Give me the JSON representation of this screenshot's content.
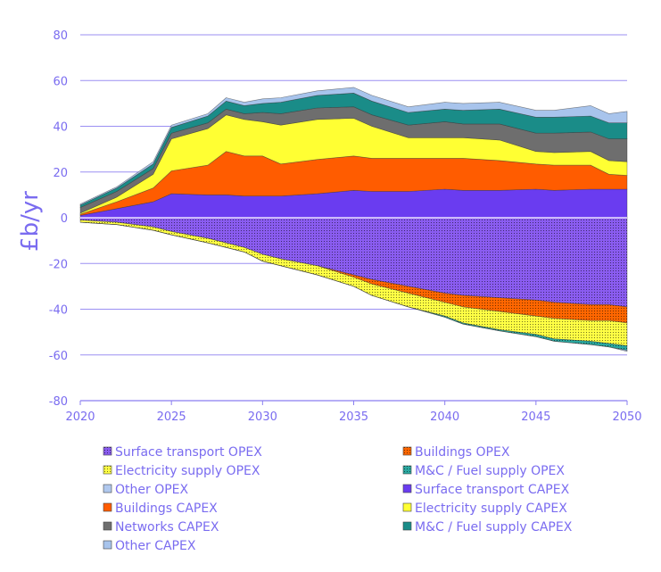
{
  "chart_data": {
    "type": "area",
    "ylabel": "£b/yr",
    "xlabel": "",
    "ylim": [
      -80,
      80
    ],
    "yticks": [
      -80,
      -60,
      -40,
      -20,
      0,
      20,
      40,
      60,
      80
    ],
    "xlim": [
      2020,
      2050
    ],
    "xticks": [
      2020,
      2025,
      2030,
      2035,
      2040,
      2045,
      2050
    ],
    "grid": "horizontal",
    "legend_position": "bottom",
    "x": [
      2020,
      2022,
      2024,
      2025,
      2027,
      2028,
      2029,
      2030,
      2031,
      2033,
      2035,
      2036,
      2038,
      2040,
      2041,
      2043,
      2045,
      2046,
      2048,
      2049,
      2050
    ],
    "series": [
      {
        "name": "Surface transport OPEX",
        "group": "negative",
        "color": "#8a5cf0",
        "pattern": "dots",
        "values": [
          -1,
          -2,
          -4,
          -6,
          -9,
          -11,
          -13,
          -16,
          -18,
          -21,
          -25,
          -27,
          -30,
          -33,
          -34,
          -35,
          -36,
          -37,
          -38,
          -38,
          -39
        ]
      },
      {
        "name": "Buildings OPEX",
        "group": "negative",
        "color": "#ff6600",
        "pattern": "dots",
        "values": [
          0,
          0,
          0,
          0,
          0,
          0,
          0,
          0,
          0,
          0,
          -1,
          -2,
          -3,
          -4,
          -5,
          -6,
          -7,
          -7,
          -7,
          -7,
          -7
        ]
      },
      {
        "name": "Electricity supply OPEX",
        "group": "negative",
        "color": "#ffff44",
        "pattern": "dots",
        "values": [
          -1,
          -1,
          -1.5,
          -1.5,
          -2,
          -2,
          -2,
          -3,
          -3,
          -4,
          -4,
          -5,
          -6,
          -6,
          -7,
          -8,
          -8,
          -9,
          -9,
          -10,
          -10
        ]
      },
      {
        "name": "M&C / Fuel supply OPEX",
        "group": "negative",
        "color": "#2aa8a0",
        "pattern": "dots",
        "values": [
          0,
          0,
          0,
          0,
          0,
          0,
          0,
          0,
          0,
          0,
          0,
          0,
          0,
          -0.5,
          -0.5,
          -0.5,
          -1,
          -1,
          -1.5,
          -1.5,
          -2
        ]
      },
      {
        "name": "Other OPEX",
        "group": "negative",
        "color": "#b0c8ee",
        "pattern": "solid",
        "values": [
          0,
          0,
          0,
          0,
          0,
          0,
          0,
          0,
          0,
          0,
          0,
          0,
          0,
          0,
          0,
          0,
          0,
          0,
          0,
          0,
          -0.5
        ]
      },
      {
        "name": "Surface transport CAPEX",
        "group": "positive",
        "color": "#6a3cf0",
        "pattern": "solid",
        "values": [
          1,
          4,
          7,
          10.5,
          10,
          10,
          9.5,
          9.5,
          9.5,
          10.5,
          12,
          11.5,
          11.5,
          12.5,
          12,
          12,
          12.5,
          12,
          12.5,
          12.5,
          12.5
        ]
      },
      {
        "name": "Buildings CAPEX",
        "group": "positive",
        "color": "#ff5c00",
        "pattern": "solid",
        "values": [
          0.5,
          3,
          6,
          10,
          13,
          19,
          17.5,
          17.5,
          14,
          15,
          15,
          14.5,
          14.5,
          13.5,
          14,
          13,
          11,
          11,
          10.5,
          6.5,
          6
        ]
      },
      {
        "name": "Electricity supply CAPEX",
        "group": "positive",
        "color": "#ffff33",
        "pattern": "solid",
        "values": [
          0.5,
          2,
          6,
          14,
          16,
          16,
          16,
          15,
          17,
          17.5,
          16.5,
          14,
          9,
          9,
          9,
          9,
          5.5,
          5.5,
          6,
          6,
          6
        ]
      },
      {
        "name": "Networks CAPEX",
        "group": "positive",
        "color": "#6e6e6e",
        "pattern": "solid",
        "values": [
          2.5,
          2.5,
          2.5,
          2.5,
          2.5,
          2.5,
          2.5,
          4,
          5,
          5,
          5,
          5,
          5.5,
          7,
          6,
          7,
          8,
          8.5,
          8.5,
          9.5,
          10
        ]
      },
      {
        "name": "M&C / Fuel supply CAPEX",
        "group": "positive",
        "color": "#1a8c88",
        "pattern": "solid",
        "values": [
          1,
          1.5,
          2,
          2.5,
          3,
          3.5,
          3.5,
          4,
          5,
          5.5,
          6,
          6,
          5.5,
          5.5,
          6,
          6.5,
          7,
          7,
          7,
          7,
          7
        ]
      },
      {
        "name": "Other CAPEX",
        "group": "positive",
        "color": "#a8c4ec",
        "pattern": "solid",
        "values": [
          0.5,
          0.5,
          1,
          1,
          1,
          1.5,
          1.5,
          2,
          2,
          2,
          2.5,
          2.5,
          2.5,
          3,
          3,
          3,
          3,
          3,
          4.5,
          4,
          5
        ]
      }
    ]
  }
}
